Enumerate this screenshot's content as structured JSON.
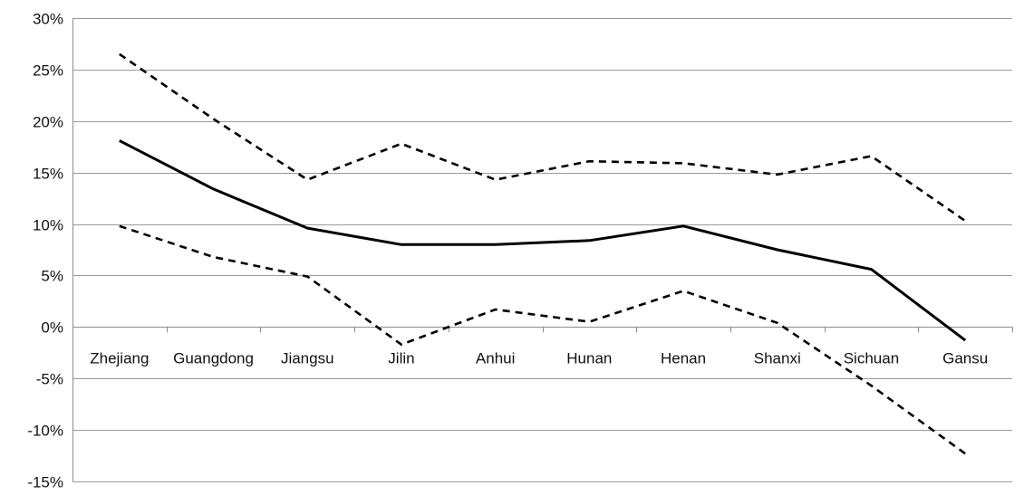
{
  "chart_data": {
    "type": "line",
    "categories": [
      "Zhejiang",
      "Guangdong",
      "Jiangsu",
      "Jilin",
      "Anhui",
      "Hunan",
      "Henan",
      "Shanxi",
      "Sichuan",
      "Gansu"
    ],
    "series": [
      {
        "style": "dashed",
        "values": [
          26.5,
          20.2,
          14.3,
          17.8,
          14.3,
          16.1,
          15.9,
          14.8,
          16.6,
          10.3
        ]
      },
      {
        "style": "solid",
        "values": [
          18.1,
          13.4,
          9.6,
          8.0,
          8.0,
          8.4,
          9.8,
          7.5,
          5.6,
          -1.3
        ]
      },
      {
        "style": "dashed",
        "values": [
          9.8,
          6.8,
          4.9,
          -1.7,
          1.7,
          0.5,
          3.5,
          0.4,
          -5.7,
          -12.3
        ]
      }
    ],
    "ylim": [
      -15,
      30
    ],
    "ytick_step": 5,
    "ytick_format": "percent",
    "grid": true,
    "colors": {
      "line": "#000000",
      "grid": "#9a9a9a"
    }
  }
}
